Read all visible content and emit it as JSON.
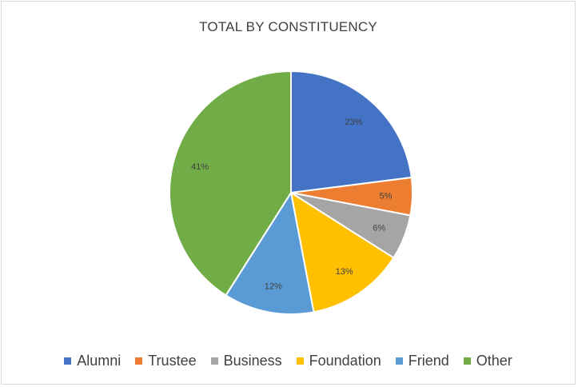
{
  "chart_data": {
    "type": "pie",
    "title": "TOTAL BY CONSTITUENCY",
    "categories": [
      "Alumni",
      "Trustee",
      "Business",
      "Foundation",
      "Friend",
      "Other"
    ],
    "values": [
      23,
      5,
      6,
      13,
      12,
      41
    ],
    "data_labels": [
      "23%",
      "5%",
      "6%",
      "13%",
      "12%",
      "41%"
    ],
    "colors": [
      "#4472c4",
      "#ed7d31",
      "#a5a5a5",
      "#ffc000",
      "#5b9bd5",
      "#70ad47"
    ],
    "legend_position": "bottom"
  }
}
